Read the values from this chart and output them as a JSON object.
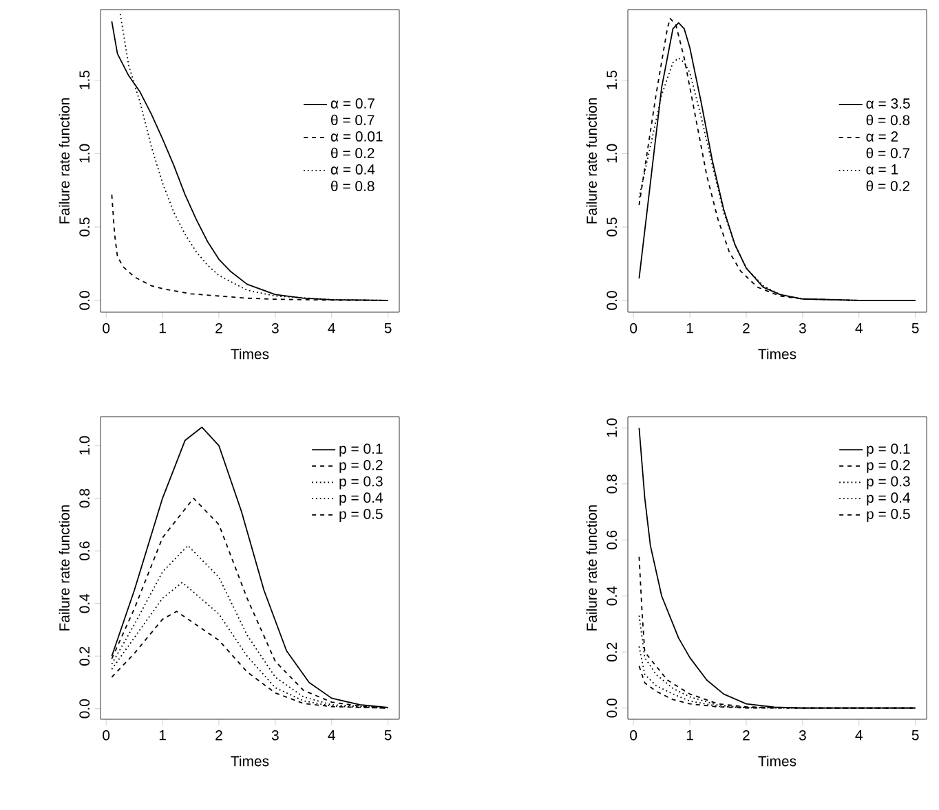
{
  "chart_data": [
    {
      "type": "line",
      "xlabel": "Times",
      "ylabel": "Failure rate function",
      "xlim": [
        -0.1,
        5.2
      ],
      "ylim": [
        -0.08,
        1.98
      ],
      "xticks": [
        0,
        1,
        2,
        3,
        4,
        5
      ],
      "yticks": [
        {
          "value": 0,
          "label": "0.0"
        },
        {
          "value": 0.5,
          "label": "0.5"
        },
        {
          "value": 1,
          "label": "1.0"
        },
        {
          "value": 1.5,
          "label": "1.5"
        }
      ],
      "legend": "right",
      "annotations": [
        "θ = 0.7",
        "θ = 0.2",
        "θ = 0.8"
      ],
      "series": [
        {
          "name": "α = 0.7",
          "color": "#000000",
          "line_style": "solid",
          "x": [
            0.1,
            0.2,
            0.4,
            0.6,
            0.8,
            1.0,
            1.2,
            1.4,
            1.6,
            1.8,
            2.0,
            2.2,
            2.5,
            3.0,
            3.5,
            4.0,
            4.5,
            5.0
          ],
          "values": [
            1.9,
            1.68,
            1.53,
            1.42,
            1.27,
            1.1,
            0.92,
            0.72,
            0.55,
            0.4,
            0.28,
            0.2,
            0.11,
            0.04,
            0.015,
            0.005,
            0.002,
            0
          ]
        },
        {
          "name": "α = 0.01",
          "color": "#000000",
          "line_style": "dashed",
          "x": [
            0.1,
            0.15,
            0.2,
            0.3,
            0.5,
            0.8,
            1.0,
            1.5,
            2.0,
            2.5,
            3.0,
            4.0,
            5.0
          ],
          "values": [
            0.72,
            0.45,
            0.3,
            0.23,
            0.16,
            0.1,
            0.08,
            0.045,
            0.03,
            0.015,
            0.008,
            0.002,
            0
          ]
        },
        {
          "name": "α = 0.4",
          "color": "#000000",
          "line_style": "dotted",
          "x": [
            0.25,
            0.4,
            0.6,
            0.8,
            1.0,
            1.2,
            1.4,
            1.6,
            1.8,
            2.0,
            2.5,
            3.0,
            4.0,
            5.0
          ],
          "values": [
            1.95,
            1.6,
            1.35,
            1.05,
            0.8,
            0.6,
            0.45,
            0.33,
            0.24,
            0.17,
            0.07,
            0.03,
            0.005,
            0
          ]
        }
      ]
    },
    {
      "type": "line",
      "xlabel": "Times",
      "ylabel": "Failure rate function",
      "xlim": [
        -0.1,
        5.2
      ],
      "ylim": [
        -0.08,
        1.98
      ],
      "xticks": [
        0,
        1,
        2,
        3,
        4,
        5
      ],
      "yticks": [
        {
          "value": 0,
          "label": "0.0"
        },
        {
          "value": 0.5,
          "label": "0.5"
        },
        {
          "value": 1,
          "label": "1.0"
        },
        {
          "value": 1.5,
          "label": "1.5"
        }
      ],
      "legend": "right",
      "annotations": [
        "θ = 0.8",
        "θ = 0.7",
        "θ = 0.2"
      ],
      "series": [
        {
          "name": "α = 3.5",
          "color": "#000000",
          "line_style": "solid",
          "x": [
            0.1,
            0.3,
            0.5,
            0.7,
            0.8,
            0.9,
            1.0,
            1.2,
            1.4,
            1.6,
            1.8,
            2.0,
            2.3,
            2.6,
            3.0,
            4.0,
            5.0
          ],
          "values": [
            0.15,
            0.8,
            1.45,
            1.85,
            1.89,
            1.85,
            1.72,
            1.35,
            0.95,
            0.62,
            0.38,
            0.22,
            0.09,
            0.04,
            0.01,
            0,
            0
          ]
        },
        {
          "name": "α = 2",
          "color": "#000000",
          "line_style": "dashed",
          "x": [
            0.1,
            0.2,
            0.4,
            0.6,
            0.65,
            0.75,
            0.9,
            1.1,
            1.3,
            1.5,
            1.7,
            1.9,
            2.2,
            2.6,
            3.0,
            4.0,
            5.0
          ],
          "values": [
            0.65,
            0.9,
            1.4,
            1.85,
            1.92,
            1.88,
            1.65,
            1.25,
            0.85,
            0.55,
            0.33,
            0.2,
            0.09,
            0.03,
            0.01,
            0,
            0
          ]
        },
        {
          "name": "α = 1",
          "color": "#000000",
          "line_style": "dotted",
          "x": [
            0.1,
            0.3,
            0.5,
            0.7,
            0.8,
            0.9,
            1.0,
            1.2,
            1.4,
            1.6,
            1.8,
            2.0,
            2.3,
            2.6,
            3.0,
            4.0,
            5.0
          ],
          "values": [
            0.7,
            1.05,
            1.4,
            1.62,
            1.65,
            1.62,
            1.55,
            1.25,
            0.92,
            0.6,
            0.38,
            0.22,
            0.1,
            0.04,
            0.01,
            0,
            0
          ]
        }
      ]
    },
    {
      "type": "line",
      "xlabel": "Times",
      "ylabel": "Failure rate function",
      "xlim": [
        -0.1,
        5.2
      ],
      "ylim": [
        -0.04,
        1.11
      ],
      "xticks": [
        0,
        1,
        2,
        3,
        4,
        5
      ],
      "yticks": [
        {
          "value": 0,
          "label": "0.0"
        },
        {
          "value": 0.2,
          "label": "0.2"
        },
        {
          "value": 0.4,
          "label": "0.4"
        },
        {
          "value": 0.6,
          "label": "0.6"
        },
        {
          "value": 0.8,
          "label": "0.8"
        },
        {
          "value": 1,
          "label": "1.0"
        }
      ],
      "legend": "top right",
      "series": [
        {
          "name": "p = 0.1",
          "color": "#000000",
          "line_style": "solid",
          "x": [
            0.1,
            0.5,
            1.0,
            1.4,
            1.7,
            2.0,
            2.4,
            2.8,
            3.2,
            3.6,
            4.0,
            4.5,
            5.0
          ],
          "values": [
            0.2,
            0.45,
            0.8,
            1.02,
            1.07,
            1.0,
            0.75,
            0.45,
            0.22,
            0.1,
            0.04,
            0.015,
            0.005
          ]
        },
        {
          "name": "p = 0.2",
          "color": "#000000",
          "line_style": "dashed",
          "x": [
            0.1,
            0.5,
            1.0,
            1.55,
            2.0,
            2.5,
            3.0,
            3.5,
            4.0,
            4.5,
            5.0
          ],
          "values": [
            0.19,
            0.38,
            0.65,
            0.8,
            0.7,
            0.42,
            0.18,
            0.07,
            0.025,
            0.01,
            0.004
          ]
        },
        {
          "name": "p = 0.3",
          "color": "#000000",
          "line_style": "dotted",
          "x": [
            0.1,
            0.5,
            1.0,
            1.45,
            2.0,
            2.5,
            3.0,
            3.5,
            4.0,
            5.0
          ],
          "values": [
            0.17,
            0.32,
            0.52,
            0.62,
            0.5,
            0.28,
            0.12,
            0.045,
            0.015,
            0.003
          ]
        },
        {
          "name": "p = 0.4",
          "color": "#000000",
          "line_style": "dotted",
          "x": [
            0.1,
            0.5,
            1.0,
            1.35,
            2.0,
            2.5,
            3.0,
            3.5,
            4.0,
            5.0
          ],
          "values": [
            0.15,
            0.27,
            0.42,
            0.48,
            0.36,
            0.2,
            0.08,
            0.03,
            0.01,
            0.002
          ]
        },
        {
          "name": "p = 0.5",
          "color": "#000000",
          "line_style": "dashed",
          "x": [
            0.1,
            0.5,
            1.0,
            1.25,
            2.0,
            2.5,
            3.0,
            3.5,
            4.0,
            5.0
          ],
          "values": [
            0.12,
            0.21,
            0.34,
            0.37,
            0.26,
            0.14,
            0.06,
            0.02,
            0.008,
            0.002
          ]
        }
      ]
    },
    {
      "type": "line",
      "xlabel": "Times",
      "ylabel": "Failure rate function",
      "xlim": [
        -0.1,
        5.2
      ],
      "ylim": [
        -0.04,
        1.04
      ],
      "xticks": [
        0,
        1,
        2,
        3,
        4,
        5
      ],
      "yticks": [
        {
          "value": 0,
          "label": "0.0"
        },
        {
          "value": 0.2,
          "label": "0.2"
        },
        {
          "value": 0.4,
          "label": "0.4"
        },
        {
          "value": 0.6,
          "label": "0.6"
        },
        {
          "value": 0.8,
          "label": "0.8"
        },
        {
          "value": 1,
          "label": "1.0"
        }
      ],
      "legend": "top right",
      "series": [
        {
          "name": "p = 0.1",
          "color": "#000000",
          "line_style": "solid",
          "x": [
            0.1,
            0.2,
            0.3,
            0.5,
            0.8,
            1.0,
            1.3,
            1.6,
            2.0,
            2.5,
            3.0,
            5.0
          ],
          "values": [
            1.0,
            0.75,
            0.58,
            0.4,
            0.25,
            0.18,
            0.1,
            0.05,
            0.015,
            0.003,
            0,
            0
          ]
        },
        {
          "name": "p = 0.2",
          "color": "#000000",
          "line_style": "dashed",
          "x": [
            0.1,
            0.15,
            0.2,
            0.4,
            0.6,
            1.0,
            1.5,
            2.0,
            3.0,
            5.0
          ],
          "values": [
            0.54,
            0.35,
            0.2,
            0.15,
            0.1,
            0.05,
            0.015,
            0.004,
            0,
            0
          ]
        },
        {
          "name": "p = 0.3",
          "color": "#000000",
          "line_style": "dotted",
          "x": [
            0.1,
            0.2,
            0.4,
            0.7,
            1.0,
            1.5,
            2.0,
            3.0,
            5.0
          ],
          "values": [
            0.33,
            0.18,
            0.12,
            0.07,
            0.04,
            0.01,
            0.002,
            0,
            0
          ]
        },
        {
          "name": "p = 0.4",
          "color": "#000000",
          "line_style": "dotted",
          "x": [
            0.1,
            0.2,
            0.4,
            0.7,
            1.0,
            1.5,
            2.0,
            3.0,
            5.0
          ],
          "values": [
            0.22,
            0.12,
            0.08,
            0.05,
            0.025,
            0.006,
            0.001,
            0,
            0
          ]
        },
        {
          "name": "p = 0.5",
          "color": "#000000",
          "line_style": "dashed",
          "x": [
            0.1,
            0.2,
            0.4,
            0.7,
            1.0,
            1.5,
            2.0,
            3.0,
            5.0
          ],
          "values": [
            0.15,
            0.09,
            0.06,
            0.03,
            0.015,
            0.004,
            0,
            0,
            0
          ]
        }
      ]
    }
  ]
}
